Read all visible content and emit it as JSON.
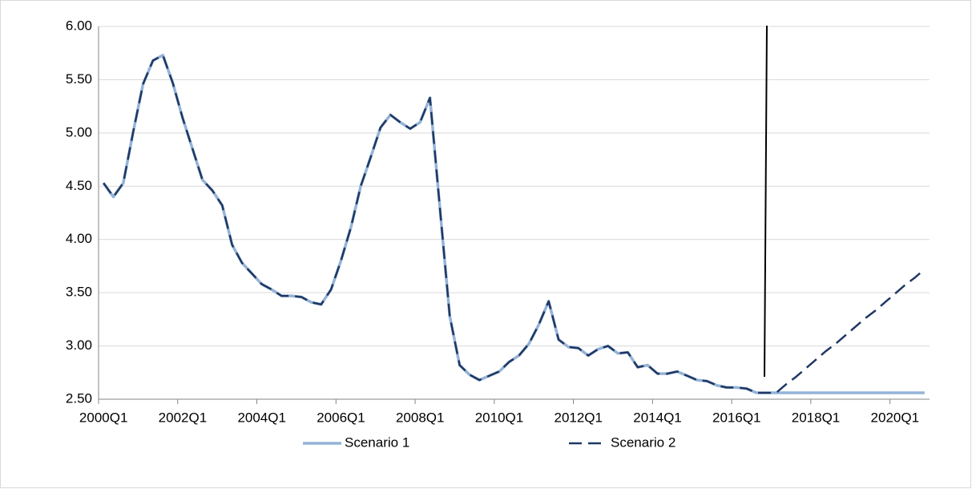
{
  "chart_data": {
    "type": "line",
    "categories": [
      "2000Q1",
      null,
      null,
      null,
      null,
      null,
      null,
      null,
      "2002Q1",
      null,
      null,
      null,
      null,
      null,
      null,
      null,
      "2004Q1",
      null,
      null,
      null,
      null,
      null,
      null,
      null,
      "2006Q1",
      null,
      null,
      null,
      null,
      null,
      null,
      null,
      "2008Q1",
      null,
      null,
      null,
      null,
      null,
      null,
      null,
      "2010Q1",
      null,
      null,
      null,
      null,
      null,
      null,
      null,
      "2012Q1",
      null,
      null,
      null,
      null,
      null,
      null,
      null,
      "2014Q1",
      null,
      null,
      null,
      null,
      null,
      null,
      null,
      "2016Q1",
      null,
      null,
      null,
      null,
      null,
      null,
      null,
      "2018Q1",
      null,
      null,
      null,
      null,
      null,
      null,
      null,
      "2020Q1",
      null,
      null,
      null
    ],
    "series": [
      {
        "name": "Scenario 1",
        "color": "#95b3d7",
        "dashed": false,
        "values": [
          4.53,
          4.4,
          4.53,
          5.01,
          5.46,
          5.68,
          5.73,
          5.47,
          5.14,
          4.85,
          4.56,
          4.46,
          4.32,
          3.95,
          3.78,
          3.68,
          3.58,
          3.53,
          3.47,
          3.47,
          3.46,
          3.41,
          3.39,
          3.53,
          3.8,
          4.11,
          4.5,
          4.77,
          5.05,
          5.17,
          5.1,
          5.04,
          5.1,
          5.33,
          4.3,
          3.28,
          2.82,
          2.73,
          2.68,
          2.72,
          2.76,
          2.85,
          2.91,
          3.02,
          3.2,
          3.42,
          3.06,
          2.99,
          2.98,
          2.91,
          2.97,
          3.0,
          2.93,
          2.94,
          2.8,
          2.82,
          2.74,
          2.74,
          2.76,
          2.72,
          2.68,
          2.67,
          2.63,
          2.61,
          2.61,
          2.6,
          2.56,
          2.56,
          2.56,
          2.56,
          2.56,
          2.56,
          2.56,
          2.56,
          2.56,
          2.56,
          2.56,
          2.56,
          2.56,
          2.56,
          2.56,
          2.56,
          2.56,
          2.56
        ]
      },
      {
        "name": "Scenario 2",
        "color": "#1f3864",
        "dashed": true,
        "values": [
          4.53,
          4.4,
          4.53,
          5.01,
          5.46,
          5.68,
          5.73,
          5.47,
          5.14,
          4.85,
          4.56,
          4.46,
          4.32,
          3.95,
          3.78,
          3.68,
          3.58,
          3.53,
          3.47,
          3.47,
          3.46,
          3.41,
          3.39,
          3.53,
          3.8,
          4.11,
          4.5,
          4.77,
          5.05,
          5.17,
          5.1,
          5.04,
          5.1,
          5.33,
          4.3,
          3.28,
          2.82,
          2.73,
          2.68,
          2.72,
          2.76,
          2.85,
          2.91,
          3.02,
          3.2,
          3.42,
          3.06,
          2.99,
          2.98,
          2.91,
          2.97,
          3.0,
          2.93,
          2.94,
          2.8,
          2.82,
          2.74,
          2.74,
          2.76,
          2.72,
          2.68,
          2.67,
          2.63,
          2.61,
          2.61,
          2.6,
          2.56,
          2.56,
          2.56,
          2.64,
          2.71,
          2.79,
          2.87,
          2.95,
          3.02,
          3.1,
          3.18,
          3.26,
          3.33,
          3.41,
          3.49,
          3.57,
          3.64,
          3.72
        ]
      }
    ],
    "ylim": [
      2.5,
      6.0
    ],
    "yticks": [
      {
        "value": 2.5,
        "label": "2.50"
      },
      {
        "value": 3,
        "label": "3.00"
      },
      {
        "value": 3.5,
        "label": "3.50"
      },
      {
        "value": 4,
        "label": "4.00"
      },
      {
        "value": 4.5,
        "label": "4.50"
      },
      {
        "value": 5,
        "label": "5.00"
      },
      {
        "value": 5.5,
        "label": "5.50"
      },
      {
        "value": 6,
        "label": "6.00"
      }
    ],
    "grid": true,
    "legend": "bottom"
  }
}
